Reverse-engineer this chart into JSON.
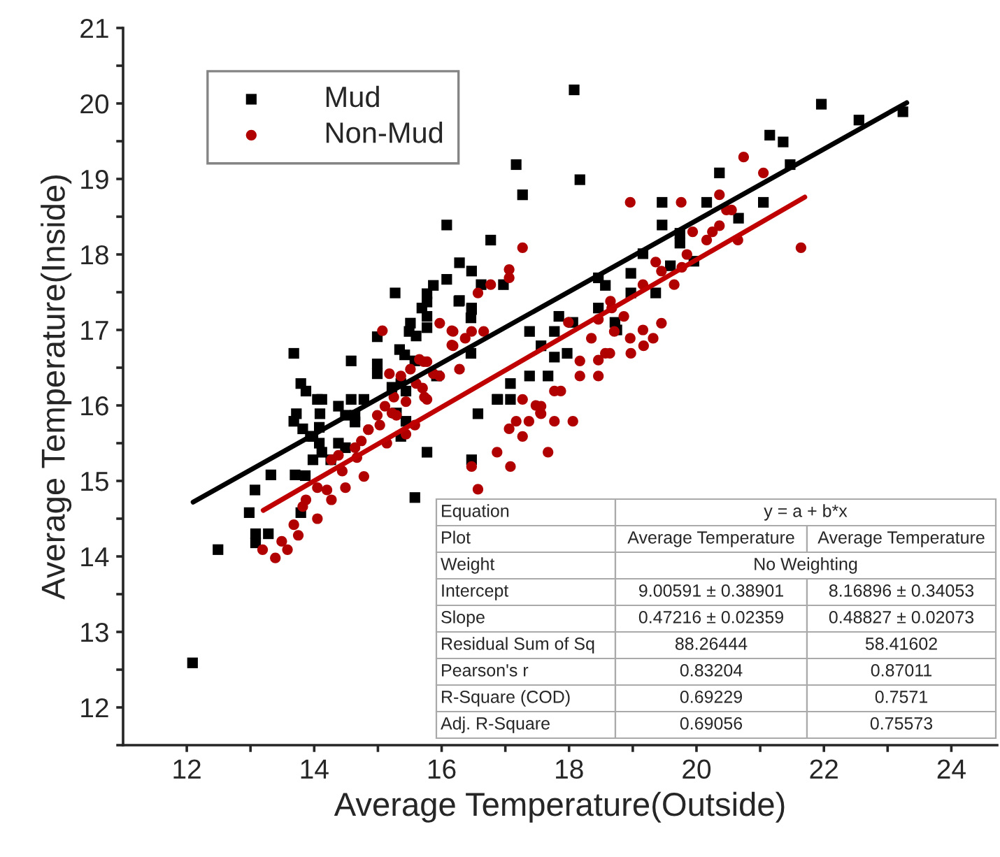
{
  "chart_data": {
    "type": "scatter",
    "xlabel": "Average Temperature(Outside)",
    "ylabel": "Average Temperature(Inside)",
    "xlim": [
      11,
      24.72
    ],
    "ylim": [
      11.5,
      21
    ],
    "xticks": [
      12,
      {
        "value": 13,
        "label": null
      },
      14,
      {
        "value": 15,
        "label": null
      },
      16,
      {
        "value": 17,
        "label": null
      },
      18,
      {
        "value": 19,
        "label": null
      },
      20,
      {
        "value": 21,
        "label": null
      },
      22,
      {
        "value": 23,
        "label": null
      },
      24
    ],
    "yticks": [
      {
        "value": 11.5,
        "label": null
      },
      12,
      {
        "value": 12.5,
        "label": null
      },
      13,
      {
        "value": 13.5,
        "label": null
      },
      14,
      {
        "value": 14.5,
        "label": null
      },
      15,
      {
        "value": 15.5,
        "label": null
      },
      16,
      {
        "value": 16.5,
        "label": null
      },
      17,
      {
        "value": 17.5,
        "label": null
      },
      18,
      {
        "value": 18.5,
        "label": null
      },
      19,
      {
        "value": 19.5,
        "label": null
      },
      20,
      {
        "value": 20.5,
        "label": null
      },
      21
    ],
    "grid": false,
    "legend": "top left",
    "series": [
      {
        "name": "Mud",
        "color": "#000000",
        "marker": "square",
        "x": [
          18.08,
          21.96,
          22.55,
          23.24,
          21.15,
          21.36,
          17.17,
          18.17,
          17.27,
          20.36,
          21.47,
          21.05,
          19.46,
          20.16,
          20.66,
          19.46,
          16.08,
          16.77,
          16.28,
          16.47,
          16.08,
          16.97,
          15.87,
          15.77,
          16.62,
          16.28,
          16.47,
          15.77,
          15.77,
          19.16,
          19.74,
          19.74,
          19.59,
          19.96,
          18.97,
          18.57,
          18.46,
          18.97,
          19.36,
          18.46,
          17.84,
          18.72,
          18.75,
          17.38,
          17.77,
          18.06,
          17.77,
          17.56,
          17.97,
          16.46,
          17.38,
          17.67,
          17.08,
          16.87,
          17.08,
          16.57,
          15.77,
          16.47,
          15.92,
          15.27,
          15.69,
          15.77,
          16.27,
          16.47,
          16.46,
          15.51,
          15.49,
          15.6,
          14.99,
          15.42,
          15.58,
          15.34,
          13.68,
          14.58,
          14.99,
          14.99,
          13.79,
          13.87,
          14.05,
          14.12,
          14.38,
          14.58,
          14.78,
          14.49,
          14.64,
          14.64,
          13.72,
          13.68,
          14.09,
          13.82,
          13.98,
          15.44,
          15.29,
          15.22,
          15.36,
          15.44,
          16.88,
          15.36,
          14.12,
          14.26,
          14.08,
          14.38,
          14.49,
          14.08,
          13.94,
          13.7,
          13.32,
          13.86,
          13.98,
          13.07,
          12.98,
          13.79,
          13.08,
          13.08,
          13.28,
          12.49,
          12.09,
          15.58
        ],
        "values": [
          20.18,
          19.99,
          19.78,
          19.89,
          19.58,
          19.49,
          19.19,
          18.99,
          18.79,
          19.08,
          19.19,
          18.69,
          18.69,
          18.69,
          18.48,
          18.39,
          18.39,
          18.19,
          17.89,
          17.78,
          17.67,
          17.6,
          17.59,
          17.48,
          17.6,
          17.39,
          17.27,
          17.18,
          17.03,
          18.01,
          18.28,
          18.15,
          17.85,
          17.91,
          17.75,
          17.59,
          17.69,
          17.49,
          17.49,
          17.29,
          17.18,
          17.1,
          17.0,
          16.98,
          16.98,
          17.1,
          16.64,
          16.79,
          16.69,
          16.69,
          16.39,
          16.39,
          16.29,
          16.08,
          16.08,
          15.89,
          15.38,
          15.28,
          16.39,
          17.49,
          17.29,
          17.37,
          17.38,
          17.29,
          17.16,
          17.09,
          16.98,
          16.92,
          16.91,
          16.67,
          16.59,
          16.74,
          16.69,
          16.59,
          16.55,
          16.42,
          16.29,
          16.19,
          16.08,
          16.08,
          15.99,
          16.08,
          16.08,
          15.87,
          15.87,
          15.78,
          15.89,
          15.79,
          15.89,
          15.69,
          15.59,
          15.79,
          15.9,
          16.24,
          16.29,
          16.19,
          16.08,
          15.59,
          15.38,
          15.28,
          15.71,
          15.5,
          15.44,
          15.5,
          15.59,
          15.08,
          15.08,
          15.07,
          15.28,
          14.88,
          14.58,
          14.58,
          14.3,
          14.18,
          14.3,
          14.09,
          12.59,
          14.78
        ]
      },
      {
        "name": "Non-Mud",
        "color": "#b00000",
        "marker": "circle",
        "x": [
          20.74,
          21.05,
          20.36,
          18.96,
          19.76,
          20.47,
          20.55,
          20.36,
          20.25,
          20.16,
          19.94,
          20.65,
          21.64,
          17.27,
          17.06,
          17.06,
          16.77,
          16.57,
          19.85,
          19.77,
          19.45,
          19.65,
          19.36,
          19.16,
          18.65,
          18.67,
          18.46,
          18.86,
          17.99,
          18.35,
          18.71,
          18.96,
          19.16,
          19.32,
          19.45,
          19.17,
          18.97,
          18.57,
          18.64,
          18.46,
          18.17,
          18.17,
          18.46,
          17.77,
          17.87,
          17.27,
          17.56,
          17.56,
          17.17,
          17.37,
          17.77,
          18.06,
          17.06,
          17.27,
          16.87,
          17.67,
          17.08,
          16.47,
          16.57,
          15.97,
          16.18,
          16.18,
          16.37,
          16.47,
          16.66,
          16.28,
          15.97,
          15.77,
          15.72,
          15.07,
          16.16,
          16.16,
          15.18,
          15.36,
          15.51,
          15.65,
          15.77,
          15.87,
          15.6,
          15.7,
          15.25,
          15.11,
          14.99,
          15.29,
          15.44,
          14.85,
          14.74,
          14.64,
          14.38,
          14.27,
          17.48,
          17.55,
          13.19,
          13.39,
          13.58,
          13.49,
          13.68,
          13.75,
          14.05,
          13.82,
          13.87,
          14.05,
          14.2,
          14.27,
          14.27,
          14.44,
          14.49,
          14.67,
          14.78,
          14.85,
          15.03,
          15.22,
          15.44,
          15.58,
          15.73,
          15.14
        ],
        "values": [
          19.29,
          19.08,
          18.79,
          18.69,
          18.69,
          18.59,
          18.59,
          18.38,
          18.3,
          18.19,
          18.3,
          18.19,
          18.09,
          18.09,
          17.8,
          17.69,
          17.6,
          17.49,
          18.0,
          17.83,
          17.78,
          17.6,
          17.9,
          17.6,
          17.38,
          17.29,
          17.14,
          17.18,
          17.1,
          16.89,
          16.98,
          16.89,
          17.0,
          16.89,
          17.09,
          16.79,
          16.69,
          16.69,
          16.69,
          16.6,
          16.59,
          16.39,
          16.39,
          16.19,
          16.19,
          16.08,
          15.99,
          15.89,
          15.79,
          15.79,
          15.79,
          15.79,
          15.69,
          15.59,
          15.38,
          15.38,
          15.19,
          15.19,
          14.89,
          17.09,
          16.98,
          16.79,
          16.89,
          16.98,
          16.98,
          16.48,
          16.39,
          16.08,
          16.58,
          16.99,
          16.99,
          16.8,
          16.42,
          16.39,
          16.48,
          16.61,
          16.58,
          16.42,
          16.29,
          16.23,
          16.11,
          15.99,
          15.87,
          15.87,
          16.05,
          15.68,
          15.53,
          15.44,
          15.34,
          15.28,
          16.0,
          15.9,
          14.09,
          13.98,
          14.09,
          14.2,
          14.42,
          14.28,
          14.5,
          14.66,
          14.75,
          14.91,
          14.88,
          14.75,
          15.28,
          15.13,
          14.91,
          15.31,
          15.06,
          15.68,
          15.74,
          15.9,
          15.62,
          15.74,
          16.11,
          15.5
        ]
      },
      {
        "color": "#000000",
        "type": "line",
        "x": [
          12.1,
          23.3
        ],
        "values": [
          14.72,
          20.01
        ]
      },
      {
        "color": "#c00000",
        "type": "line",
        "x": [
          13.2,
          21.7
        ],
        "values": [
          14.61,
          18.76
        ]
      }
    ],
    "annotations": [
      "Equation",
      "y = a + b*x",
      "Plot",
      "Average Temperature",
      "Average Temperature",
      "Weight",
      "No Weighting",
      "Intercept",
      "9.00591 ± 0.38901",
      "8.16896 ± 0.34053",
      "Slope",
      "0.47216 ± 0.02359",
      "0.48827 ± 0.02073",
      "Residual Sum of Sq",
      "88.26444",
      "58.41602",
      "Pearson's r",
      "0.83204",
      "0.87011",
      "R-Square (COD)",
      "0.69229",
      "0.7571",
      "Adj. R-Square",
      "0.69056",
      "0.75573"
    ]
  }
}
